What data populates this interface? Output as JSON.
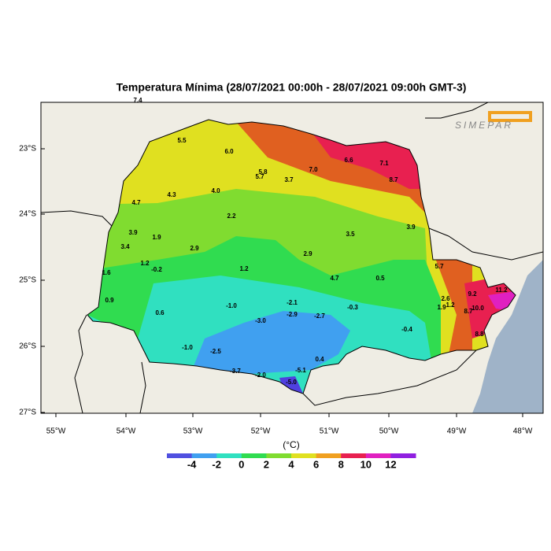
{
  "title": "Temperatura Mínima (28/07/2021 00:00h - 28/07/2021 09:00h GMT-3)",
  "logo": "SIMEPAR",
  "lat_labels": [
    "23°S",
    "24°S",
    "25°S",
    "26°S",
    "27°S"
  ],
  "lon_labels": [
    "55°W",
    "54°W",
    "53°W",
    "52°W",
    "51°W",
    "50°W",
    "49°W",
    "48°W"
  ],
  "stations": [
    "7.4",
    "5.5",
    "6.0",
    "5.8",
    "5.7",
    "3.7",
    "7.0",
    "6.6",
    "7.1",
    "8.7",
    "4.3",
    "4.0",
    "4.7",
    "2.2",
    "3.9",
    "1.9",
    "3.5",
    "3.9",
    "3.4",
    "2.9",
    "2.9",
    "1.2",
    "-0.2",
    "1.2",
    "5.7",
    "1.6",
    "4.7",
    "0.5",
    "9.2",
    "11.2",
    "0.9",
    "-1.0",
    "-2.1",
    "-0.3",
    "2.6",
    "1.2",
    "1.9",
    "10.0",
    "8.7",
    "0.6",
    "-2.9",
    "-2.7",
    "-3.0",
    "-0.4",
    "8.8",
    "-1.0",
    "-2.5",
    "0.4",
    "-3.7",
    "-2.0",
    "-5.1",
    "-5.0"
  ],
  "colorbar": {
    "unit": "(°C)",
    "labels": [
      "-4",
      "-2",
      "0",
      "2",
      "4",
      "6",
      "8",
      "10",
      "12"
    ]
  }
}
